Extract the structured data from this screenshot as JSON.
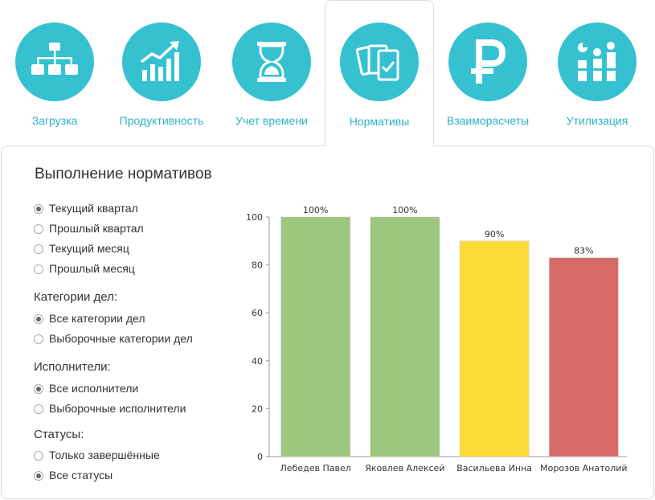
{
  "tabs": [
    {
      "label": "Загрузка",
      "icon": "hierarchy-icon",
      "active": false
    },
    {
      "label": "Продуктивность",
      "icon": "growth-chart-icon",
      "active": false
    },
    {
      "label": "Учет времени",
      "icon": "hourglass-icon",
      "active": false
    },
    {
      "label": "Нормативы",
      "icon": "cards-check-icon",
      "active": true
    },
    {
      "label": "Взаиморасчеты",
      "icon": "ruble-icon",
      "active": false
    },
    {
      "label": "Утилизация",
      "icon": "utilization-icon",
      "active": false
    }
  ],
  "panel": {
    "title": "Выполнение нормативов",
    "period_options": [
      {
        "label": "Текущий квартал",
        "checked": true
      },
      {
        "label": "Прошлый квартал",
        "checked": false
      },
      {
        "label": "Текущий месяц",
        "checked": false
      },
      {
        "label": "Прошлый месяц",
        "checked": false
      }
    ],
    "categories": {
      "title": "Категории дел:",
      "options": [
        {
          "label": "Все категории дел",
          "checked": true
        },
        {
          "label": "Выборочные категории дел",
          "checked": false
        }
      ]
    },
    "performers": {
      "title": "Исполнители:",
      "options": [
        {
          "label": "Все исполнители",
          "checked": true
        },
        {
          "label": "Выборочные исполнители",
          "checked": false
        }
      ]
    },
    "statuses": {
      "title": "Статусы:",
      "options": [
        {
          "label": "Только завершённые",
          "checked": false
        },
        {
          "label": "Все статусы",
          "checked": true
        }
      ]
    }
  },
  "colors": {
    "accent": "#35c1d0",
    "tab_label": "#2bb3c4",
    "bar_green": "#9dc67e",
    "bar_yellow": "#fddc37",
    "bar_red": "#d76b6a"
  },
  "chart_data": {
    "type": "bar",
    "categories": [
      "Лебедев Павел",
      "Яковлев Алексей",
      "Васильева Инна",
      "Морозов Анатолий"
    ],
    "values": [
      100,
      100,
      90,
      83
    ],
    "data_labels": [
      "100%",
      "100%",
      "90%",
      "83%"
    ],
    "bar_colors": [
      "#9dc67e",
      "#9dc67e",
      "#fddc37",
      "#d76b6a"
    ],
    "ylim": [
      0,
      100
    ],
    "yticks": [
      0,
      20,
      40,
      60,
      80,
      100
    ],
    "grid": false,
    "legend": "none"
  }
}
